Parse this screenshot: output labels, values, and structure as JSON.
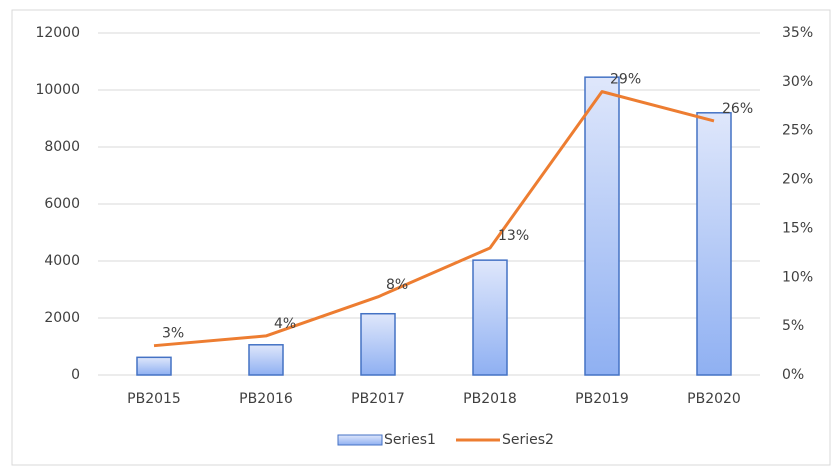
{
  "chart_data": {
    "type": "bar",
    "categories": [
      "PB2015",
      "PB2016",
      "PB2017",
      "PB2018",
      "PB2019",
      "PB2020"
    ],
    "series": [
      {
        "name": "Series1",
        "color": "#4472c4",
        "type": "bar",
        "values": [
          620,
          1060,
          2150,
          4030,
          10450,
          9200
        ]
      },
      {
        "name": "Series2",
        "color": "#ed7d31",
        "type": "line",
        "axis": "y2",
        "values": [
          3,
          4,
          8,
          13,
          29,
          26
        ],
        "value_labels": [
          "3%",
          "4%",
          "8%",
          "13%",
          "29%",
          "26%"
        ]
      }
    ],
    "ylim": [
      0,
      12000
    ],
    "yticks": [
      0,
      2000,
      4000,
      6000,
      8000,
      10000,
      12000
    ],
    "y2lim": [
      0,
      35
    ],
    "y2ticks": [
      {
        "value": 0,
        "label": "0%"
      },
      {
        "value": 5,
        "label": "5%"
      },
      {
        "value": 10,
        "label": "10%"
      },
      {
        "value": 15,
        "label": "15%"
      },
      {
        "value": 20,
        "label": "20%"
      },
      {
        "value": 25,
        "label": "25%"
      },
      {
        "value": 30,
        "label": "30%"
      },
      {
        "value": 35,
        "label": "35%"
      }
    ],
    "grid": true,
    "legend": "bottom"
  }
}
